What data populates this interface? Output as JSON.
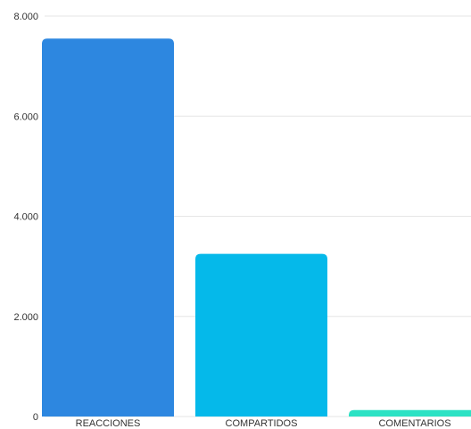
{
  "chart_data": {
    "type": "bar",
    "title": "",
    "xlabel": "",
    "ylabel": "",
    "categories": [
      "REACCIONES",
      "COMPARTIDOS",
      "COMENTARIOS"
    ],
    "values": [
      7550,
      3250,
      130
    ],
    "colors": [
      "#2D87E0",
      "#05B9EA",
      "#2CE2C4"
    ],
    "ylim": [
      0,
      8000
    ],
    "yticks": [
      0,
      2000,
      4000,
      6000,
      8000
    ],
    "ytick_labels": [
      "0",
      "2.000",
      "4.000",
      "6.000",
      "8.000"
    ],
    "grid": true,
    "grid_color": "#e6e6e6",
    "legend": "none"
  }
}
